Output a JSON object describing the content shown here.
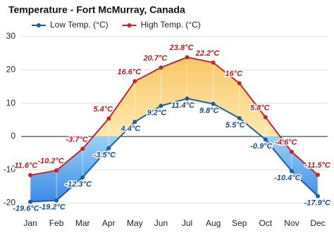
{
  "chart_data": {
    "type": "line",
    "title": "Temperature - Fort McMurray, Canada",
    "categories": [
      "Jan",
      "Feb",
      "Mar",
      "Apr",
      "May",
      "Jun",
      "Jul",
      "Aug",
      "Sep",
      "Oct",
      "Nov",
      "Dec"
    ],
    "series": [
      {
        "name": "Low Temp. (°C)",
        "color": "#1f5e9e",
        "values": [
          -19.6,
          -19.2,
          -12.3,
          -3.5,
          4.4,
          9.2,
          11.4,
          9.8,
          5.5,
          -0.9,
          -10.4,
          -17.9
        ],
        "value_labels": [
          "-19.6°C",
          "-19.2°C",
          "-12.3°C",
          "-3.5°C",
          "4.4°C",
          "9.2°C",
          "11.4°C",
          "9.8°C",
          "5.5°C",
          "-0.9°C",
          "-10.4°C",
          "-17.9°C"
        ]
      },
      {
        "name": "High Temp. (°C)",
        "color": "#c0272d",
        "values": [
          -11.6,
          -10.2,
          -3.7,
          5.4,
          16.6,
          20.7,
          23.8,
          22.2,
          16,
          5.8,
          -4.6,
          -11.5
        ],
        "value_labels": [
          "-11.6°C",
          "-10.2°C",
          "-3.7°C",
          "5.4°C",
          "16.6°C",
          "20.7°C",
          "23.8°C",
          "22.2°C",
          "16°C",
          "5.8°C",
          "-4.6°C",
          "-11.5°C"
        ]
      }
    ],
    "ylim": [
      -22,
      30
    ],
    "yticks": [
      -20,
      -10,
      0,
      10,
      20,
      30
    ],
    "grid": true
  }
}
